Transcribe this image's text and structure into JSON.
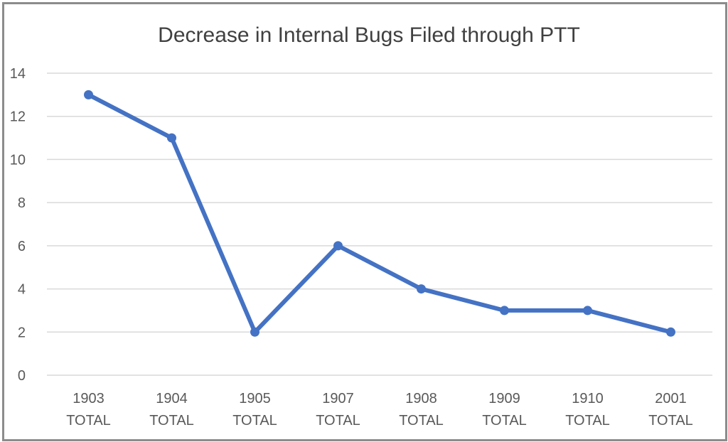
{
  "chart_data": {
    "type": "line",
    "title": "Decrease in Internal Bugs Filed through PTT",
    "xlabel": "",
    "ylabel": "",
    "categories": [
      [
        "1903",
        "TOTAL"
      ],
      [
        "1904",
        "TOTAL"
      ],
      [
        "1905",
        "TOTAL"
      ],
      [
        "1907",
        "TOTAL"
      ],
      [
        "1908",
        "TOTAL"
      ],
      [
        "1909",
        "TOTAL"
      ],
      [
        "1910",
        "TOTAL"
      ],
      [
        "2001",
        "TOTAL"
      ]
    ],
    "series": [
      {
        "values": [
          13,
          11,
          2,
          6,
          4,
          3,
          3,
          2
        ],
        "color": "#4472c4"
      }
    ],
    "ylim": [
      0,
      14
    ],
    "yticks": [
      0,
      2,
      4,
      6,
      8,
      10,
      12,
      14
    ],
    "grid": true,
    "legend": "none",
    "markers": true
  }
}
